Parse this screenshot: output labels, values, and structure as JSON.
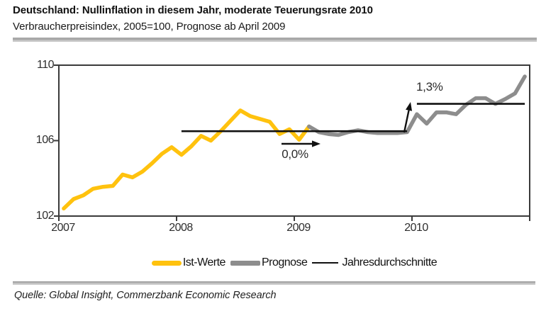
{
  "header": {
    "title": "Deutschland: Nullinflation in diesem Jahr, moderate Teuerungsrate 2010",
    "subtitle": "Verbraucherpreisindex, 2005=100, Prognose ab April 2009"
  },
  "source": "Quelle: Global Insight, Commerzbank Economic Research",
  "colors": {
    "ist_werte": "#FFC20E",
    "prognose": "#8D8D8D",
    "average_line": "#111111",
    "axis": "#3a3a3a",
    "divider": "#b0b0b0"
  },
  "legend": {
    "items": [
      {
        "label": "Ist-Werte"
      },
      {
        "label": "Prognose"
      },
      {
        "label": "Jahresdurchschnitte"
      }
    ]
  },
  "chart_data": {
    "type": "line",
    "title": "Deutschland: Nullinflation in diesem Jahr, moderate Teuerungsrate 2010",
    "subtitle": "Verbraucherpreisindex, 2005=100, Prognose ab April 2009",
    "x_unit": "month",
    "x_range": [
      "2007-01",
      "2010-12"
    ],
    "x_tick_labels": [
      "2007",
      "2008",
      "2009",
      "2010"
    ],
    "ylim": [
      102,
      110
    ],
    "y_tick_values": [
      110,
      106,
      102
    ],
    "y_tick_labels": [
      "110",
      "106",
      "102"
    ],
    "grid": false,
    "legend_position": "bottom-center",
    "series": [
      {
        "name": "Ist-Werte",
        "color": "#FFC20E",
        "start": "2007-01",
        "values": [
          102.4,
          102.9,
          103.1,
          103.45,
          103.55,
          103.6,
          104.2,
          104.05,
          104.35,
          104.8,
          105.3,
          105.65,
          105.25,
          105.7,
          106.25,
          106.0,
          106.5,
          107.05,
          107.6,
          107.3,
          107.15,
          107.0,
          106.35,
          106.6,
          106.05,
          106.75
        ]
      },
      {
        "name": "Prognose",
        "color": "#8D8D8D",
        "start": "2009-02",
        "values": [
          106.75,
          106.45,
          106.35,
          106.3,
          106.45,
          106.55,
          106.45,
          106.4,
          106.4,
          106.4,
          106.45,
          107.4,
          106.9,
          107.5,
          107.5,
          107.4,
          107.9,
          108.25,
          108.25,
          107.95,
          108.2,
          108.5,
          109.4
        ]
      }
    ],
    "average_lines": [
      {
        "label": "0,0%",
        "value": 106.5,
        "from": "2008-01",
        "to": "2009-12"
      },
      {
        "label": "1,3%",
        "value": 107.95,
        "from": "2010-01",
        "to": "2010-12"
      }
    ]
  }
}
